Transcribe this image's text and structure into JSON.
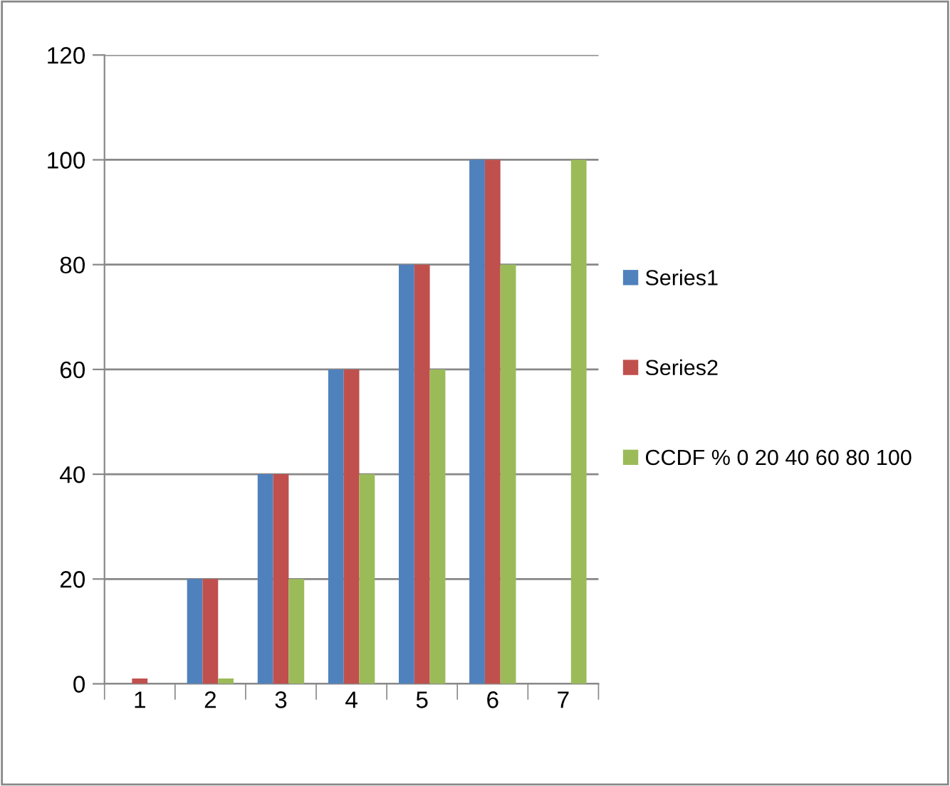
{
  "chart_data": {
    "type": "bar",
    "categories": [
      "1",
      "2",
      "3",
      "4",
      "5",
      "6",
      "7"
    ],
    "series": [
      {
        "name": "Series1",
        "color": "#4f81bd",
        "values": [
          0,
          20,
          40,
          60,
          80,
          100,
          null
        ]
      },
      {
        "name": "Series2",
        "color": "#c0504d",
        "values": [
          1,
          20,
          40,
          60,
          80,
          100,
          null
        ]
      },
      {
        "name": "CCDF % 0 20 40 60 80 100",
        "color": "#9bbb59",
        "values": [
          0,
          1,
          20,
          40,
          60,
          80,
          100
        ]
      }
    ],
    "ylim": [
      0,
      120
    ],
    "yticks": [
      0,
      20,
      40,
      60,
      80,
      100,
      120
    ],
    "grid": "y",
    "legend": "right"
  }
}
